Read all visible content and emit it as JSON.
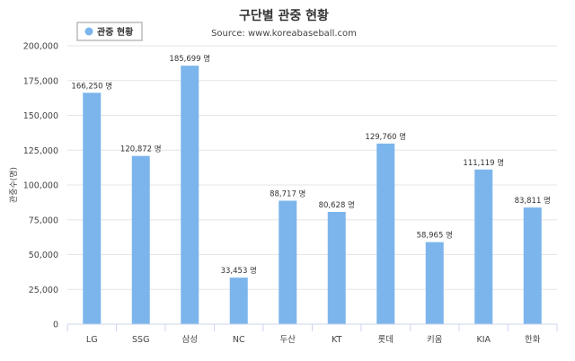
{
  "chart_data": {
    "type": "bar",
    "title": "구단별 관중 현황",
    "subtitle": "Source: www.koreabaseball.com",
    "ylabel": "관중수(명)",
    "xlabel": "",
    "legend": {
      "entries": [
        "관중 현황"
      ],
      "placement": "top-left"
    },
    "categories": [
      "LG",
      "SSG",
      "삼성",
      "NC",
      "두산",
      "KT",
      "롯데",
      "키움",
      "KIA",
      "한화"
    ],
    "series": [
      {
        "name": "관중 현황",
        "values": [
          166250,
          120872,
          185699,
          33453,
          88717,
          80628,
          129760,
          58965,
          111119,
          83811
        ]
      }
    ],
    "data_label_suffix": " 명",
    "ylim": [
      0,
      200000
    ],
    "yticks": [
      0,
      25000,
      50000,
      75000,
      100000,
      125000,
      150000,
      175000,
      200000
    ],
    "grid": true,
    "colors": {
      "bar": "#7cb5ec",
      "grid": "#e6e6e6",
      "axis": "#ccd6eb"
    }
  }
}
